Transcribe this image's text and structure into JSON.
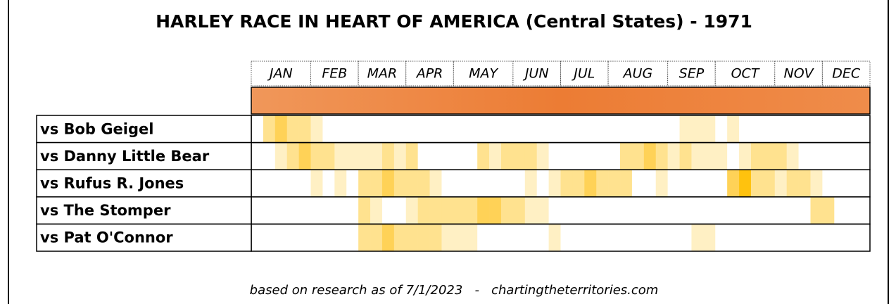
{
  "chart_data": {
    "type": "timeline-heatmap",
    "title": "HARLEY RACE IN HEART OF AMERICA (Central States) - 1971",
    "months": [
      "JAN",
      "FEB",
      "MAR",
      "APR",
      "MAY",
      "JUN",
      "JUL",
      "AUG",
      "SEP",
      "OCT",
      "NOV",
      "DEC"
    ],
    "colors": [
      "#ffffff",
      "#fff0c4",
      "#ffe28f",
      "#ffd257",
      "#ffc20e"
    ],
    "rows": [
      {
        "name": "vs Bob Geigel",
        "levels": [
          0,
          2,
          3,
          2,
          2,
          1,
          0,
          0,
          0,
          0,
          0,
          0,
          0,
          0,
          0,
          0,
          0,
          0,
          0,
          0,
          0,
          0,
          0,
          0,
          0,
          0,
          0,
          0,
          0,
          0,
          0,
          0,
          0,
          0,
          0,
          0,
          1,
          1,
          1,
          0,
          1,
          0,
          0,
          0,
          0,
          0,
          0,
          0,
          0,
          0,
          0,
          0
        ]
      },
      {
        "name": "vs Danny Little Bear",
        "levels": [
          0,
          0,
          1,
          2,
          3,
          2,
          2,
          1,
          1,
          1,
          1,
          2,
          1,
          2,
          0,
          0,
          0,
          0,
          0,
          2,
          1,
          2,
          2,
          2,
          1,
          0,
          0,
          0,
          0,
          0,
          0,
          2,
          2,
          3,
          2,
          1,
          2,
          1,
          1,
          1,
          0,
          1,
          2,
          2,
          2,
          1,
          0,
          0,
          0,
          0,
          0,
          0
        ]
      },
      {
        "name": "vs Rufus R. Jones",
        "levels": [
          0,
          0,
          0,
          0,
          0,
          1,
          0,
          1,
          0,
          2,
          2,
          3,
          2,
          2,
          2,
          1,
          0,
          0,
          0,
          0,
          0,
          0,
          0,
          1,
          0,
          1,
          2,
          2,
          3,
          2,
          2,
          2,
          0,
          0,
          1,
          0,
          0,
          0,
          0,
          0,
          3,
          4,
          2,
          2,
          1,
          2,
          2,
          1,
          0,
          0,
          0,
          0
        ]
      },
      {
        "name": "vs The Stomper",
        "levels": [
          0,
          0,
          0,
          0,
          0,
          0,
          0,
          0,
          0,
          2,
          1,
          0,
          0,
          1,
          2,
          2,
          2,
          2,
          2,
          3,
          3,
          2,
          2,
          1,
          1,
          0,
          0,
          0,
          0,
          0,
          0,
          0,
          0,
          0,
          0,
          0,
          0,
          0,
          0,
          0,
          0,
          0,
          0,
          0,
          0,
          0,
          0,
          2,
          2,
          0,
          0,
          0
        ]
      },
      {
        "name": "vs Pat O'Connor",
        "levels": [
          0,
          0,
          0,
          0,
          0,
          0,
          0,
          0,
          0,
          2,
          2,
          3,
          2,
          2,
          2,
          2,
          1,
          1,
          1,
          0,
          0,
          0,
          0,
          0,
          0,
          1,
          0,
          0,
          0,
          0,
          0,
          0,
          0,
          0,
          0,
          0,
          0,
          1,
          1,
          0,
          0,
          0,
          0,
          0,
          0,
          0,
          0,
          0,
          0,
          0,
          0,
          0
        ]
      }
    ],
    "footer": "based on research as of 7/1/2023   -   chartingtheterritories.com"
  }
}
